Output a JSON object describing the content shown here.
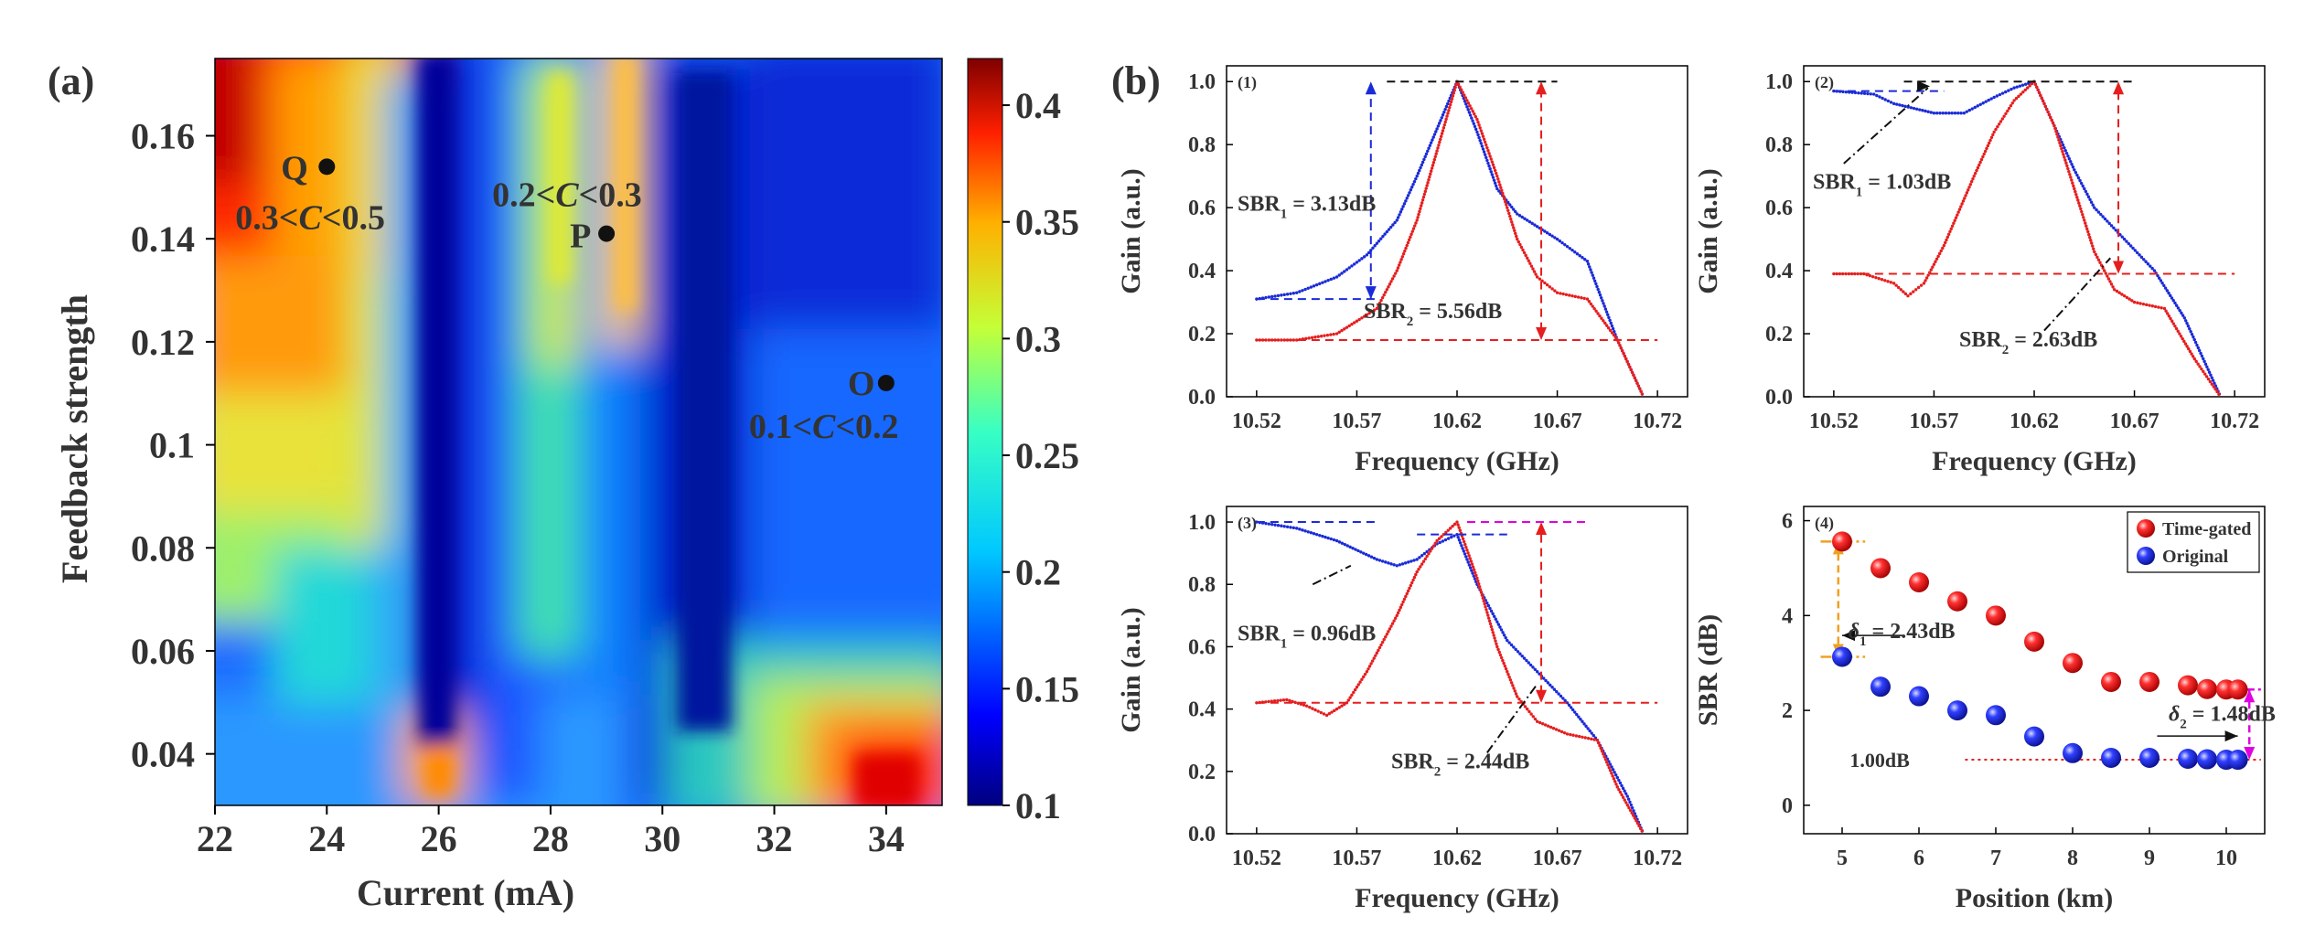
{
  "panel_a": {
    "label": "(a)",
    "xlabel": "Current (mA)",
    "ylabel": "Feedback strength",
    "xlim": [
      22,
      35
    ],
    "ylim": [
      0.03,
      0.175
    ],
    "xticks": [
      "22",
      "24",
      "26",
      "28",
      "30",
      "32",
      "34"
    ],
    "yticks": [
      "0.04",
      "0.06",
      "0.08",
      "0.1",
      "0.12",
      "0.14",
      "0.16"
    ],
    "colorbar": {
      "range": [
        0.1,
        0.42
      ],
      "ticks": [
        "0.1",
        "0.15",
        "0.2",
        "0.25",
        "0.3",
        "0.35",
        "0.4"
      ]
    },
    "points": [
      {
        "name": "Q",
        "x": 24,
        "y": 0.154,
        "range": [
          "0.3<",
          "C",
          "<0.5"
        ]
      },
      {
        "name": "P",
        "x": 29,
        "y": 0.141,
        "range": [
          "0.2<",
          "C",
          "<0.3"
        ]
      },
      {
        "name": "O",
        "x": 34,
        "y": 0.112,
        "range": [
          "0.1<",
          "C",
          "<0.2"
        ]
      }
    ]
  },
  "panel_b": {
    "label": "(b)",
    "subplots": [
      {
        "id": "(1)",
        "xlabel": "Frequency (GHz)",
        "ylabel": "Gain (a.u.)",
        "xticks": [
          "10.52",
          "10.57",
          "10.62",
          "10.67",
          "10.72"
        ],
        "yticks": [
          "0.0",
          "0.2",
          "0.4",
          "0.6",
          "0.8",
          "1.0"
        ],
        "sbr1": {
          "main": "SBR",
          "sub": "1",
          "val": "= 3.13dB"
        },
        "sbr2": {
          "main": "SBR",
          "sub": "2",
          "val": "= 5.56dB"
        }
      },
      {
        "id": "(2)",
        "xlabel": "Frequency (GHz)",
        "ylabel": "Gain (a.u.)",
        "xticks": [
          "10.52",
          "10.57",
          "10.62",
          "10.67",
          "10.72"
        ],
        "yticks": [
          "0.0",
          "0.2",
          "0.4",
          "0.6",
          "0.8",
          "1.0"
        ],
        "sbr1": {
          "main": "SBR",
          "sub": "1",
          "val": "= 1.03dB"
        },
        "sbr2": {
          "main": "SBR",
          "sub": "2",
          "val": "= 2.63dB"
        }
      },
      {
        "id": "(3)",
        "xlabel": "Frequency (GHz)",
        "ylabel": "Gain (a.u.)",
        "xticks": [
          "10.52",
          "10.57",
          "10.62",
          "10.67",
          "10.72"
        ],
        "yticks": [
          "0.0",
          "0.2",
          "0.4",
          "0.6",
          "0.8",
          "1.0"
        ],
        "sbr1": {
          "main": "SBR",
          "sub": "1",
          "val": "= 0.96dB"
        },
        "sbr2": {
          "main": "SBR",
          "sub": "2",
          "val": "= 2.44dB"
        }
      },
      {
        "id": "(4)",
        "xlabel": "Position (km)",
        "ylabel": "SBR (dB)",
        "xticks": [
          "5",
          "6",
          "7",
          "8",
          "9",
          "10"
        ],
        "yticks": [
          "0",
          "2",
          "4",
          "6"
        ],
        "delta1": {
          "main": "δ",
          "sub": "1",
          "val": "= 2.43dB"
        },
        "delta2": {
          "main": "δ",
          "sub": "2",
          "val": "= 1.48dB"
        },
        "ref_label": "1.00dB",
        "legend": [
          "Time-gated",
          "Original"
        ]
      }
    ]
  },
  "chart_data": [
    {
      "type": "heatmap",
      "title": "(a)",
      "xlabel": "Current (mA)",
      "ylabel": "Feedback strength",
      "xlim": [
        22,
        35
      ],
      "ylim": [
        0.03,
        0.175
      ],
      "colorbar_range": [
        0.1,
        0.42
      ],
      "annotated_points": [
        {
          "label": "Q",
          "x": 24,
          "y": 0.154,
          "range": "0.3<C<0.5"
        },
        {
          "label": "P",
          "x": 29,
          "y": 0.141,
          "range": "0.2<C<0.3"
        },
        {
          "label": "O",
          "x": 34,
          "y": 0.112,
          "range": "0.1<C<0.2"
        }
      ]
    },
    {
      "type": "line",
      "title": "(1)",
      "xlabel": "Frequency (GHz)",
      "ylabel": "Gain (a.u.)",
      "xlim": [
        10.505,
        10.735
      ],
      "ylim": [
        0,
        1.05
      ],
      "series": [
        {
          "name": "original",
          "color": "#1a2bd8",
          "x": [
            10.52,
            10.54,
            10.56,
            10.575,
            10.59,
            10.6,
            10.61,
            10.62,
            10.63,
            10.64,
            10.65,
            10.66,
            10.67,
            10.685,
            10.7,
            10.713
          ],
          "y": [
            0.31,
            0.33,
            0.38,
            0.45,
            0.56,
            0.7,
            0.85,
            1.0,
            0.84,
            0.66,
            0.58,
            0.54,
            0.5,
            0.43,
            0.18,
            0.0
          ]
        },
        {
          "name": "time-gated",
          "color": "#e61e1e",
          "x": [
            10.52,
            10.54,
            10.56,
            10.58,
            10.59,
            10.6,
            10.61,
            10.62,
            10.63,
            10.64,
            10.65,
            10.66,
            10.67,
            10.685,
            10.7,
            10.713
          ],
          "y": [
            0.18,
            0.18,
            0.2,
            0.28,
            0.4,
            0.56,
            0.78,
            1.0,
            0.88,
            0.7,
            0.5,
            0.38,
            0.33,
            0.31,
            0.18,
            0.0
          ]
        }
      ],
      "annotations": [
        "SBR1 = 3.13dB",
        "SBR2 = 5.56dB"
      ]
    },
    {
      "type": "line",
      "title": "(2)",
      "xlabel": "Frequency (GHz)",
      "ylabel": "Gain (a.u.)",
      "xlim": [
        10.505,
        10.735
      ],
      "ylim": [
        0,
        1.05
      ],
      "series": [
        {
          "name": "original",
          "color": "#1a2bd8",
          "x": [
            10.52,
            10.54,
            10.55,
            10.57,
            10.585,
            10.6,
            10.61,
            10.62,
            10.63,
            10.64,
            10.65,
            10.665,
            10.68,
            10.695,
            10.713
          ],
          "y": [
            0.97,
            0.96,
            0.93,
            0.9,
            0.9,
            0.95,
            0.98,
            1.0,
            0.86,
            0.72,
            0.6,
            0.5,
            0.4,
            0.25,
            0.0
          ]
        },
        {
          "name": "time-gated",
          "color": "#e61e1e",
          "x": [
            10.52,
            10.535,
            10.55,
            10.557,
            10.565,
            10.575,
            10.59,
            10.6,
            10.61,
            10.62,
            10.63,
            10.64,
            10.65,
            10.66,
            10.67,
            10.685,
            10.7,
            10.713
          ],
          "y": [
            0.39,
            0.39,
            0.36,
            0.32,
            0.36,
            0.48,
            0.7,
            0.84,
            0.94,
            1.0,
            0.86,
            0.66,
            0.46,
            0.34,
            0.3,
            0.28,
            0.12,
            0.0
          ]
        }
      ],
      "annotations": [
        "SBR1 = 1.03dB",
        "SBR2 = 2.63dB"
      ]
    },
    {
      "type": "line",
      "title": "(3)",
      "xlabel": "Frequency (GHz)",
      "ylabel": "Gain (a.u.)",
      "xlim": [
        10.505,
        10.735
      ],
      "ylim": [
        0,
        1.05
      ],
      "series": [
        {
          "name": "original",
          "color": "#1a2bd8",
          "x": [
            10.52,
            10.54,
            10.56,
            10.58,
            10.59,
            10.6,
            10.61,
            10.62,
            10.63,
            10.645,
            10.66,
            10.675,
            10.69,
            10.705,
            10.713
          ],
          "y": [
            1.0,
            0.98,
            0.94,
            0.88,
            0.86,
            0.88,
            0.93,
            0.96,
            0.8,
            0.62,
            0.52,
            0.42,
            0.3,
            0.12,
            0.0
          ]
        },
        {
          "name": "time-gated",
          "color": "#e61e1e",
          "x": [
            10.52,
            10.535,
            10.545,
            10.555,
            10.565,
            10.575,
            10.59,
            10.6,
            10.61,
            10.62,
            10.63,
            10.64,
            10.65,
            10.66,
            10.675,
            10.69,
            10.7,
            10.713
          ],
          "y": [
            0.42,
            0.43,
            0.41,
            0.38,
            0.42,
            0.52,
            0.7,
            0.84,
            0.94,
            1.0,
            0.82,
            0.6,
            0.44,
            0.36,
            0.32,
            0.3,
            0.15,
            0.0
          ]
        }
      ],
      "annotations": [
        "SBR1 = 0.96dB",
        "SBR2 = 2.44dB"
      ]
    },
    {
      "type": "scatter",
      "title": "(4)",
      "xlabel": "Position (km)",
      "ylabel": "SBR (dB)",
      "xlim": [
        4.5,
        10.5
      ],
      "ylim": [
        -0.6,
        6.3
      ],
      "series": [
        {
          "name": "Time-gated",
          "color": "#e61e1e",
          "x": [
            5,
            5.5,
            6,
            6.5,
            7,
            7.5,
            8,
            8.5,
            9,
            9.5,
            9.75,
            10,
            10.15
          ],
          "y": [
            5.56,
            5.0,
            4.7,
            4.3,
            4.0,
            3.45,
            3.0,
            2.6,
            2.6,
            2.53,
            2.45,
            2.44,
            2.44
          ]
        },
        {
          "name": "Original",
          "color": "#1f2ee0",
          "x": [
            5,
            5.5,
            6,
            6.5,
            7,
            7.5,
            8,
            8.5,
            9,
            9.5,
            9.75,
            10,
            10.15
          ],
          "y": [
            3.13,
            2.5,
            2.3,
            2.0,
            1.9,
            1.45,
            1.1,
            1.0,
            1.0,
            0.98,
            0.97,
            0.96,
            0.96
          ]
        }
      ],
      "annotations": [
        "δ1 = 2.43dB",
        "δ2 = 1.48dB",
        "1.00dB"
      ]
    }
  ]
}
